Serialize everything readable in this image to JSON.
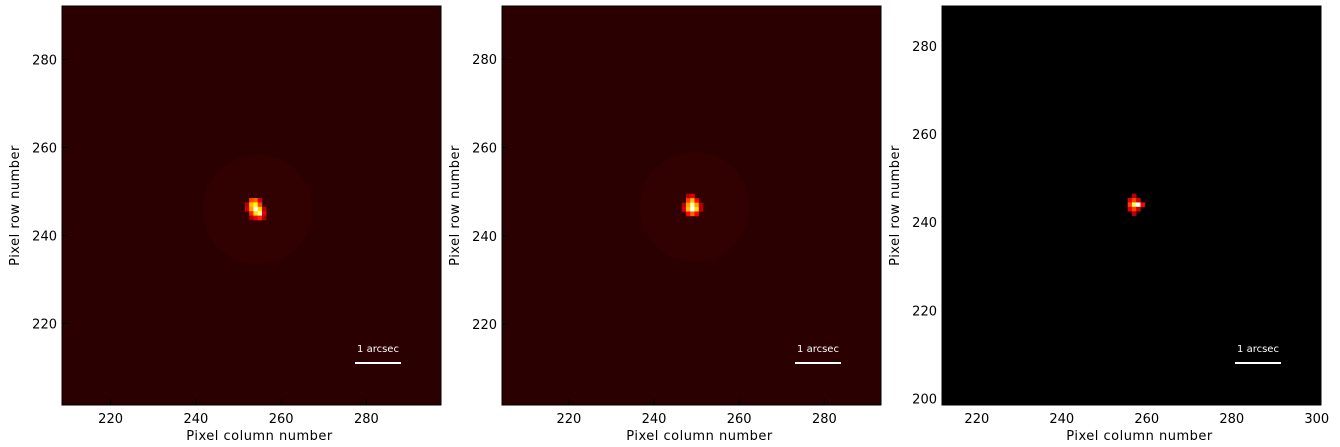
{
  "chart_data": [
    {
      "type": "heatmap",
      "xlabel": "Pixel column number",
      "ylabel": "Pixel row number",
      "xlim": [
        208.6,
        297.5
      ],
      "ylim": [
        201.4,
        292.2
      ],
      "xticks": [
        220,
        240,
        260,
        280
      ],
      "yticks": [
        220,
        240,
        260,
        280
      ],
      "background_color": "#2b0000",
      "colormap": "hot",
      "peak": {
        "x": 254.5,
        "y": 245.9
      },
      "bright_pixels": [
        {
          "x": 253,
          "y": 248,
          "v": 0.55
        },
        {
          "x": 254,
          "y": 248,
          "v": 0.6
        },
        {
          "x": 255,
          "y": 248,
          "v": 0.35
        },
        {
          "x": 252,
          "y": 247,
          "v": 0.3
        },
        {
          "x": 253,
          "y": 247,
          "v": 0.75
        },
        {
          "x": 254,
          "y": 247,
          "v": 0.85
        },
        {
          "x": 255,
          "y": 247,
          "v": 0.55
        },
        {
          "x": 252,
          "y": 246,
          "v": 0.35
        },
        {
          "x": 253,
          "y": 246,
          "v": 0.7
        },
        {
          "x": 254,
          "y": 246,
          "v": 1.0
        },
        {
          "x": 255,
          "y": 246,
          "v": 0.8
        },
        {
          "x": 256,
          "y": 246,
          "v": 0.3
        },
        {
          "x": 253,
          "y": 245,
          "v": 0.5
        },
        {
          "x": 254,
          "y": 245,
          "v": 0.8
        },
        {
          "x": 255,
          "y": 245,
          "v": 0.95
        },
        {
          "x": 256,
          "y": 245,
          "v": 0.4
        },
        {
          "x": 253,
          "y": 244,
          "v": 0.25
        },
        {
          "x": 254,
          "y": 244,
          "v": 0.4
        },
        {
          "x": 255,
          "y": 244,
          "v": 0.5
        },
        {
          "x": 256,
          "y": 244,
          "v": 0.25
        }
      ],
      "scale_bar_label": "1 arcsec"
    },
    {
      "type": "heatmap",
      "xlabel": "Pixel column number",
      "ylabel": "Pixel row number",
      "xlim": [
        204.3,
        293.3
      ],
      "ylim": [
        201.7,
        292.0
      ],
      "xticks": [
        220,
        240,
        260,
        280
      ],
      "yticks": [
        220,
        240,
        260,
        280
      ],
      "background_color": "#2b0000",
      "colormap": "hot",
      "peak": {
        "x": 249.5,
        "y": 246.5
      },
      "bright_pixels": [
        {
          "x": 248,
          "y": 249,
          "v": 0.3
        },
        {
          "x": 249,
          "y": 249,
          "v": 0.4
        },
        {
          "x": 248,
          "y": 248,
          "v": 0.55
        },
        {
          "x": 249,
          "y": 248,
          "v": 0.75
        },
        {
          "x": 250,
          "y": 248,
          "v": 0.45
        },
        {
          "x": 247,
          "y": 247,
          "v": 0.3
        },
        {
          "x": 248,
          "y": 247,
          "v": 0.7
        },
        {
          "x": 249,
          "y": 247,
          "v": 0.95
        },
        {
          "x": 250,
          "y": 247,
          "v": 0.7
        },
        {
          "x": 251,
          "y": 247,
          "v": 0.3
        },
        {
          "x": 247,
          "y": 246,
          "v": 0.35
        },
        {
          "x": 248,
          "y": 246,
          "v": 0.75
        },
        {
          "x": 249,
          "y": 246,
          "v": 1.0
        },
        {
          "x": 250,
          "y": 246,
          "v": 0.8
        },
        {
          "x": 251,
          "y": 246,
          "v": 0.3
        },
        {
          "x": 248,
          "y": 245,
          "v": 0.45
        },
        {
          "x": 249,
          "y": 245,
          "v": 0.6
        },
        {
          "x": 250,
          "y": 245,
          "v": 0.45
        }
      ],
      "scale_bar_label": "1 arcsec"
    },
    {
      "type": "heatmap",
      "xlabel": "Pixel column number",
      "ylabel": "Pixel row number",
      "xlim": [
        211.8,
        301.0
      ],
      "ylim": [
        198.5,
        289.1
      ],
      "xticks": [
        220,
        240,
        260,
        280,
        300
      ],
      "yticks": [
        200,
        220,
        240,
        260,
        280
      ],
      "background_color": "#000000",
      "colormap": "hot",
      "peak": {
        "x": 258,
        "y": 244
      },
      "bright_pixels": [
        {
          "x": 257,
          "y": 246,
          "v": 0.3
        },
        {
          "x": 256,
          "y": 245,
          "v": 0.4
        },
        {
          "x": 257,
          "y": 245,
          "v": 0.55
        },
        {
          "x": 258,
          "y": 245,
          "v": 0.35
        },
        {
          "x": 256,
          "y": 244,
          "v": 0.55
        },
        {
          "x": 257,
          "y": 244,
          "v": 0.9
        },
        {
          "x": 258,
          "y": 244,
          "v": 1.0
        },
        {
          "x": 259,
          "y": 244,
          "v": 0.45
        },
        {
          "x": 256,
          "y": 243,
          "v": 0.4
        },
        {
          "x": 257,
          "y": 243,
          "v": 0.55
        },
        {
          "x": 258,
          "y": 243,
          "v": 0.35
        },
        {
          "x": 257,
          "y": 242,
          "v": 0.3
        }
      ],
      "scale_bar_label": "1 arcsec"
    }
  ]
}
